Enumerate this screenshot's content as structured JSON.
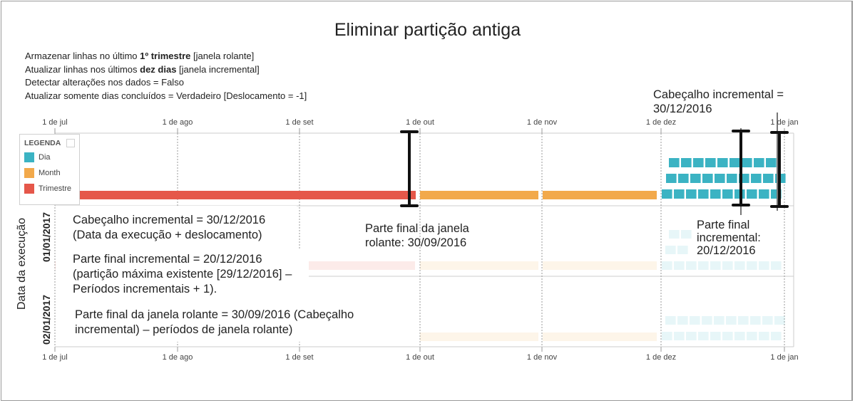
{
  "title": "Eliminar partição antiga",
  "parameters": [
    {
      "pre": "Armazenar linhas no último ",
      "bold": "1º trimestre",
      "post": " [janela rolante]"
    },
    {
      "pre": "Atualizar linhas nos últimos ",
      "bold": "dez dias",
      "post": " [janela incremental]"
    },
    {
      "pre": "Detectar alterações nos dados = Falso",
      "bold": "",
      "post": ""
    },
    {
      "pre": "Atualizar somente dias concluídos = Verdadeiro [Deslocamento = -1]",
      "bold": "",
      "post": ""
    }
  ],
  "axis": {
    "ticks": [
      "1 de jul",
      "1 de ago",
      "1 de set",
      "1 de out",
      "1 de nov",
      "1 de dez",
      "1 de jan"
    ]
  },
  "legend": {
    "title": "LEGENDA",
    "items": [
      {
        "label": "Dia",
        "color": "#3bb3c3"
      },
      {
        "label": "Month",
        "color": "#f2a94b"
      },
      {
        "label": "Trimestre",
        "color": "#e5574a"
      }
    ]
  },
  "y_axis_label": "Data da execução",
  "rows": [
    "01/01/2017",
    "02/01/2017"
  ],
  "annotations": {
    "incremental_header_top": "Cabeçalho incremental = 30/12/2016",
    "rolling_end": "Parte final da janela rolante: 30/09/2016",
    "incremental_end": "Parte final incremental: 20/12/2016",
    "callout_1": "Cabeçalho incremental = 30/12/2016 (Data da execução + deslocamento)",
    "callout_2": "Parte final incremental = 20/12/2016 (partição máxima existente [29/12/2016] – Períodos incrementais + 1).",
    "callout_3": "Parte final da janela rolante = 30/09/2016 (Cabeçalho incremental) – períodos de janela rolante)"
  },
  "colors": {
    "day": "#3bb3c3",
    "month": "#f2a94b",
    "quarter": "#e5574a",
    "marker": "#111111"
  }
}
